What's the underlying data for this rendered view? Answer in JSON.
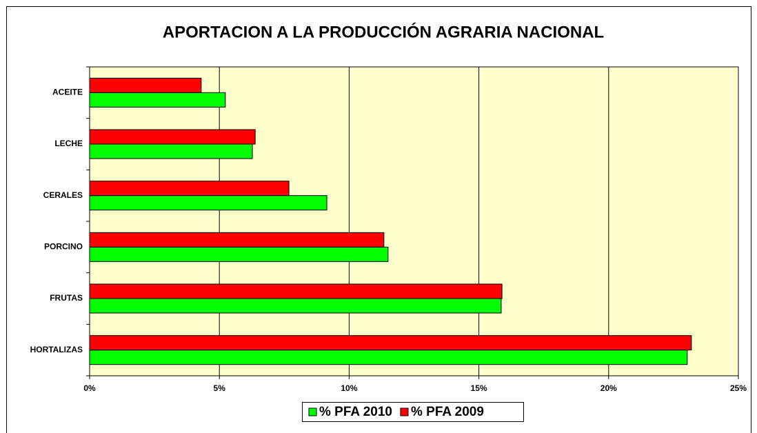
{
  "chart_data": {
    "type": "bar",
    "orientation": "horizontal",
    "title": "APORTACION A LA PRODUCCIÓN AGRARIA NACIONAL",
    "categories": [
      "ACEITE",
      "LECHE",
      "CERALES",
      "PORCINO",
      "FRUTAS",
      "HORTALIZAS"
    ],
    "series": [
      {
        "name": "% PFA 2010",
        "color": "#00ff00",
        "values": [
          5.23,
          6.27,
          9.14,
          11.5,
          15.86,
          23.03
        ]
      },
      {
        "name": "% PFA 2009",
        "color": "#ff0000",
        "values": [
          4.3,
          6.38,
          7.68,
          11.34,
          15.89,
          23.19
        ]
      }
    ],
    "xlim": [
      0,
      25
    ],
    "xticks": [
      {
        "value": 0,
        "label": "0%"
      },
      {
        "value": 5,
        "label": "5%"
      },
      {
        "value": 10,
        "label": "10%"
      },
      {
        "value": 15,
        "label": "15%"
      },
      {
        "value": 20,
        "label": "20%"
      },
      {
        "value": 25,
        "label": "25%"
      }
    ],
    "grid": true,
    "legend": "bottom"
  }
}
